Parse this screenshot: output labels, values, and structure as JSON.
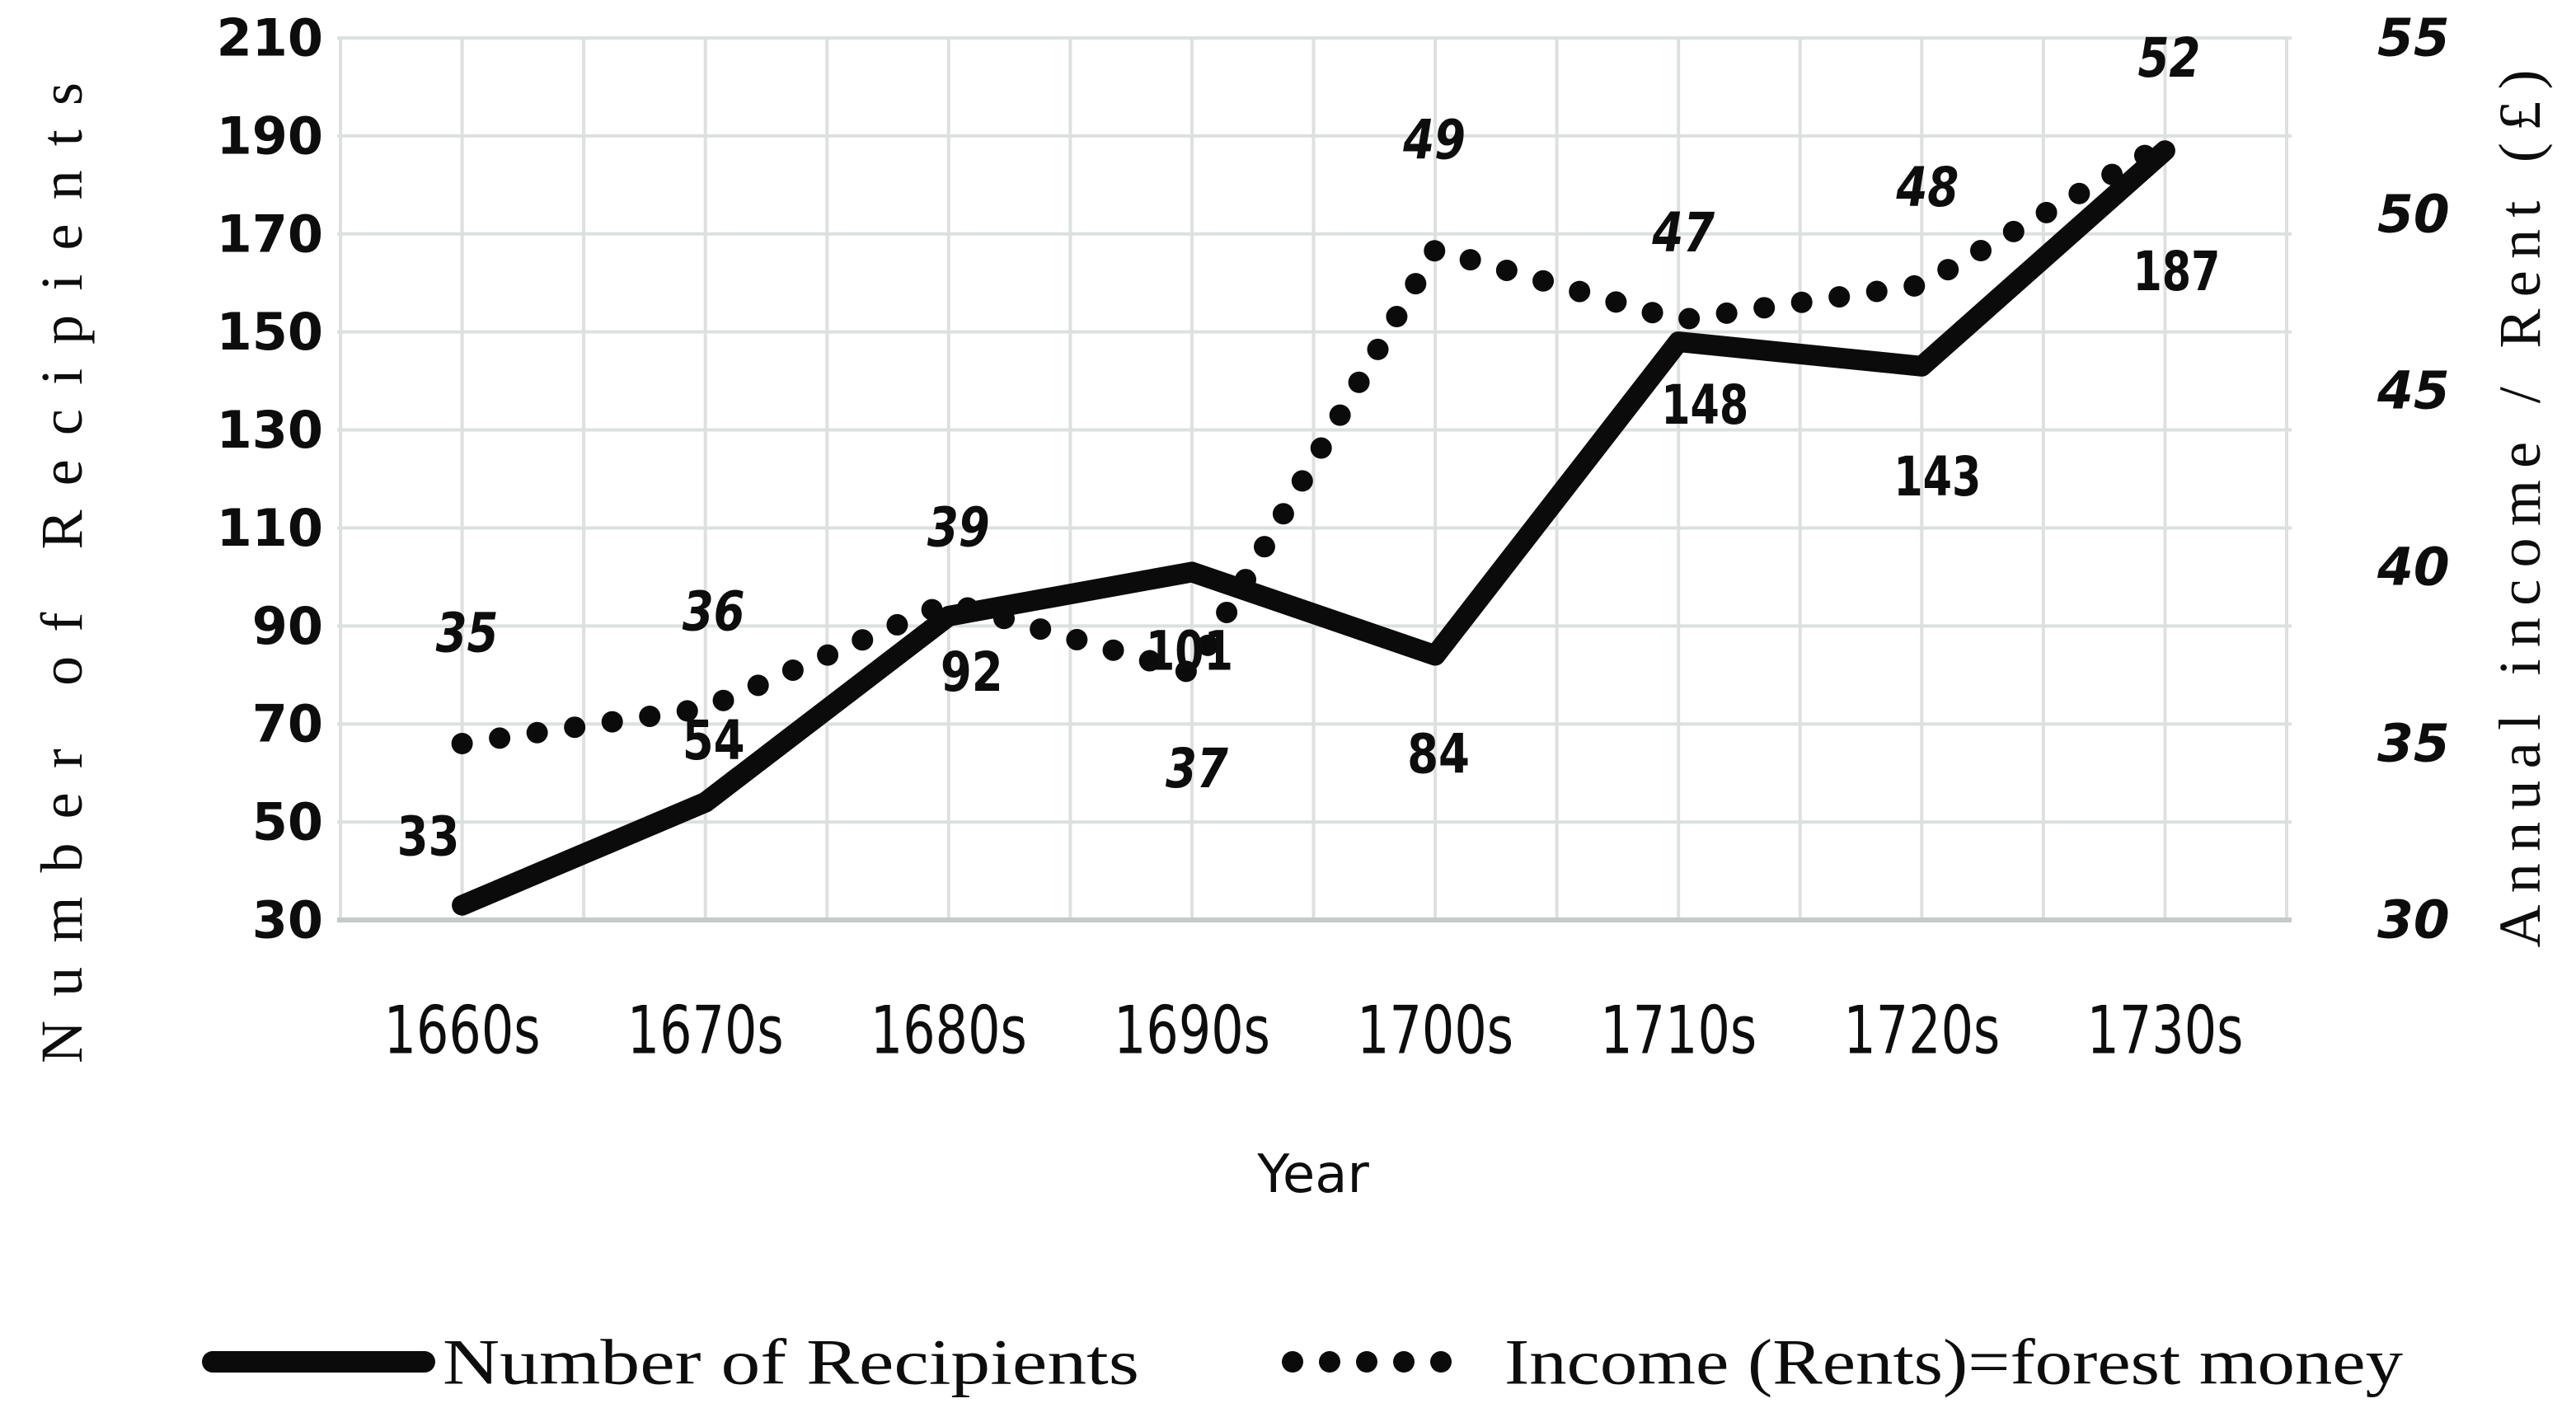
{
  "chart_data": {
    "type": "line",
    "title": "",
    "xlabel": "Year",
    "ylabel_left": "Number of Recipients",
    "ylabel_right": "Annual income / Rent (£)",
    "categories": [
      "1660s",
      "1670s",
      "1680s",
      "1690s",
      "1700s",
      "1710s",
      "1720s",
      "1730s"
    ],
    "series": [
      {
        "name": "Number of Recipients",
        "axis": "left",
        "style": "solid",
        "values": [
          33,
          54,
          92,
          101,
          84,
          148,
          143,
          187
        ]
      },
      {
        "name": "Income (Rents)=forest money",
        "axis": "right",
        "style": "dotted",
        "values": [
          35,
          36,
          39,
          37,
          49,
          47,
          48,
          52
        ]
      }
    ],
    "left_axis": {
      "min": 30,
      "max": 210,
      "step": 20,
      "ticks": [
        "210",
        "190",
        "170",
        "150",
        "130",
        "110",
        "90",
        "70",
        "50",
        "30"
      ]
    },
    "right_axis": {
      "min": 30,
      "max": 55,
      "step": 5,
      "ticks": [
        "55",
        "50",
        "45",
        "40",
        "35",
        "30"
      ]
    },
    "data_labels": true,
    "legend_position": "bottom",
    "grid": {
      "h_lines": 10,
      "v_lines": 17,
      "grid_on": true
    },
    "colors": {
      "series": "#0b0b0b",
      "gridline": "#dde0e0",
      "axis_line": "#c6caca",
      "background": "#ffffff",
      "text": "#0d0d0d"
    }
  }
}
